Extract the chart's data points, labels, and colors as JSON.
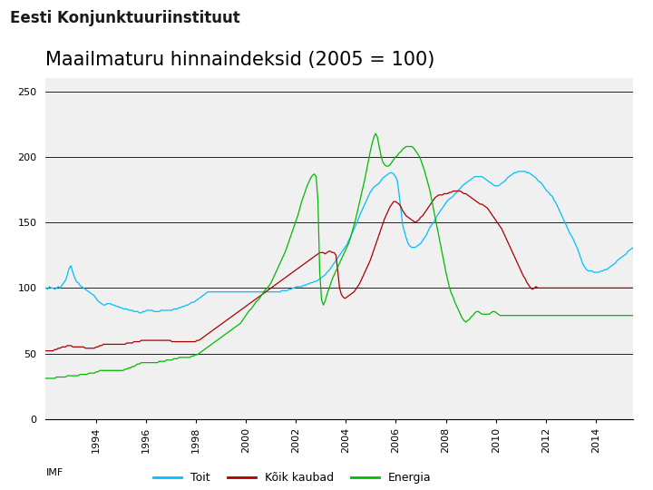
{
  "title": "Maailmaturu hinnaindeksid (2005 = 100)",
  "header": "Eesti Konjunktuuriinstituut",
  "source": "IMF",
  "legend_labels": [
    "Toit",
    "Kõik kaubad",
    "Energia"
  ],
  "colors": {
    "toit": "#00BFFF",
    "koik_kaubad": "#AA0000",
    "energia": "#00BB00"
  },
  "ylim": [
    0,
    260
  ],
  "yticks": [
    0,
    50,
    100,
    150,
    200,
    250
  ],
  "xlim_start": 1992.0,
  "xlim_end": 2015.5,
  "xtick_years": [
    "1994",
    "1996",
    "1998",
    "2000",
    "2002",
    "2004",
    "2006",
    "2008",
    "2010",
    "2012",
    "2014"
  ],
  "bg_color": "#F0F0F0",
  "header_line1_color": "#1F3864",
  "orange_color": "#E87722",
  "toit": [
    100,
    99,
    101,
    100,
    100,
    99,
    100,
    101,
    100,
    102,
    104,
    106,
    110,
    115,
    117,
    112,
    108,
    105,
    104,
    102,
    101,
    100,
    99,
    98,
    97,
    96,
    95,
    94,
    92,
    90,
    89,
    88,
    87,
    87,
    88,
    88,
    88,
    87,
    87,
    86,
    86,
    85,
    85,
    84,
    84,
    84,
    83,
    83,
    83,
    82,
    82,
    82,
    81,
    81,
    82,
    82,
    83,
    83,
    83,
    83,
    82,
    82,
    82,
    82,
    83,
    83,
    83,
    83,
    83,
    83,
    83,
    84,
    84,
    84,
    85,
    85,
    86,
    86,
    87,
    87,
    88,
    89,
    89,
    90,
    91,
    92,
    93,
    94,
    95,
    96,
    97,
    97,
    97,
    97,
    97,
    97,
    97,
    97,
    97,
    97,
    97,
    97,
    97,
    97,
    97,
    97,
    97,
    97,
    97,
    97,
    97,
    97,
    97,
    97,
    97,
    97,
    97,
    97,
    97,
    97,
    97,
    97,
    97,
    97,
    97,
    97,
    97,
    97,
    97,
    97,
    97,
    98,
    98,
    98,
    98,
    99,
    99,
    100,
    100,
    101,
    101,
    101,
    101,
    102,
    102,
    103,
    103,
    104,
    104,
    105,
    105,
    106,
    107,
    108,
    109,
    110,
    112,
    113,
    115,
    117,
    119,
    121,
    123,
    125,
    127,
    129,
    131,
    133,
    136,
    139,
    142,
    145,
    148,
    151,
    155,
    158,
    161,
    164,
    167,
    170,
    173,
    175,
    177,
    178,
    179,
    180,
    182,
    184,
    185,
    186,
    187,
    188,
    188,
    187,
    185,
    182,
    172,
    160,
    148,
    143,
    138,
    134,
    132,
    131,
    131,
    131,
    132,
    133,
    134,
    136,
    138,
    140,
    143,
    146,
    148,
    150,
    152,
    155,
    157,
    159,
    161,
    163,
    165,
    167,
    168,
    169,
    170,
    172,
    173,
    175,
    176,
    178,
    179,
    180,
    181,
    182,
    183,
    184,
    185,
    185,
    185,
    185,
    185,
    184,
    183,
    182,
    181,
    180,
    179,
    178,
    178,
    178,
    179,
    180,
    181,
    182,
    184,
    185,
    186,
    187,
    188,
    188,
    189,
    189,
    189,
    189,
    189,
    188,
    188,
    187,
    186,
    185,
    184,
    182,
    181,
    180,
    178,
    176,
    174,
    173,
    171,
    170,
    167,
    165,
    162,
    159,
    156,
    153,
    150,
    147,
    144,
    141,
    139,
    136,
    133,
    130,
    126,
    122,
    118,
    116,
    114,
    113,
    113,
    113,
    112,
    112,
    112,
    112,
    113,
    113,
    114,
    114,
    115,
    116,
    117,
    118,
    119,
    121,
    122,
    123,
    124,
    125,
    126,
    128,
    129,
    130,
    131
  ],
  "koik_kaubad": [
    52,
    52,
    52,
    52,
    52,
    53,
    53,
    54,
    54,
    55,
    55,
    55,
    56,
    56,
    56,
    55,
    55,
    55,
    55,
    55,
    55,
    55,
    54,
    54,
    54,
    54,
    54,
    54,
    55,
    55,
    56,
    56,
    57,
    57,
    57,
    57,
    57,
    57,
    57,
    57,
    57,
    57,
    57,
    57,
    57,
    58,
    58,
    58,
    58,
    59,
    59,
    59,
    59,
    60,
    60,
    60,
    60,
    60,
    60,
    60,
    60,
    60,
    60,
    60,
    60,
    60,
    60,
    60,
    60,
    60,
    59,
    59,
    59,
    59,
    59,
    59,
    59,
    59,
    59,
    59,
    59,
    59,
    59,
    59,
    60,
    60,
    61,
    62,
    63,
    64,
    65,
    66,
    67,
    68,
    69,
    70,
    71,
    72,
    73,
    74,
    75,
    76,
    77,
    78,
    79,
    80,
    81,
    82,
    83,
    84,
    85,
    86,
    87,
    88,
    89,
    90,
    91,
    92,
    93,
    94,
    95,
    96,
    97,
    98,
    99,
    100,
    101,
    102,
    103,
    104,
    105,
    106,
    107,
    108,
    109,
    110,
    111,
    112,
    113,
    114,
    115,
    116,
    117,
    118,
    119,
    120,
    121,
    122,
    123,
    124,
    125,
    126,
    127,
    127,
    127,
    126,
    127,
    128,
    128,
    127,
    127,
    125,
    113,
    100,
    95,
    93,
    92,
    93,
    94,
    95,
    96,
    97,
    99,
    101,
    103,
    106,
    109,
    112,
    115,
    118,
    121,
    125,
    129,
    133,
    137,
    141,
    145,
    149,
    153,
    156,
    159,
    162,
    164,
    166,
    166,
    165,
    164,
    162,
    159,
    157,
    155,
    154,
    153,
    152,
    151,
    150,
    151,
    152,
    154,
    155,
    157,
    159,
    161,
    163,
    165,
    167,
    169,
    170,
    171,
    171,
    171,
    172,
    172,
    172,
    173,
    173,
    174,
    174,
    174,
    174,
    174,
    173,
    172,
    172,
    171,
    170,
    169,
    168,
    167,
    166,
    165,
    164,
    164,
    163,
    162,
    161,
    159,
    157,
    155,
    153,
    151,
    149,
    147,
    145,
    142,
    139,
    136,
    133,
    130,
    127,
    124,
    121,
    118,
    115,
    112,
    109,
    107,
    104,
    102,
    100,
    99,
    100,
    101,
    100,
    100,
    100,
    100,
    100,
    100,
    100,
    100,
    100,
    100,
    100,
    100,
    100,
    100,
    100,
    100,
    100,
    100,
    100,
    100,
    100,
    100,
    100,
    100,
    100,
    100,
    100,
    100,
    100,
    100,
    100,
    100,
    100,
    100,
    100,
    100,
    100,
    100,
    100,
    100,
    100,
    100,
    100,
    100,
    100,
    100,
    100,
    100,
    100,
    100,
    100,
    100,
    100,
    100
  ],
  "energia": [
    31,
    31,
    31,
    31,
    31,
    31,
    32,
    32,
    32,
    32,
    32,
    32,
    33,
    33,
    33,
    33,
    33,
    33,
    33,
    34,
    34,
    34,
    34,
    34,
    35,
    35,
    35,
    35,
    36,
    36,
    37,
    37,
    37,
    37,
    37,
    37,
    37,
    37,
    37,
    37,
    37,
    37,
    37,
    37,
    38,
    38,
    39,
    39,
    40,
    40,
    41,
    42,
    42,
    43,
    43,
    43,
    43,
    43,
    43,
    43,
    43,
    43,
    43,
    44,
    44,
    44,
    44,
    45,
    45,
    45,
    45,
    46,
    46,
    46,
    47,
    47,
    47,
    47,
    47,
    47,
    47,
    48,
    48,
    49,
    49,
    50,
    51,
    52,
    53,
    54,
    55,
    56,
    57,
    58,
    59,
    60,
    61,
    62,
    63,
    64,
    65,
    66,
    67,
    68,
    69,
    70,
    71,
    72,
    73,
    75,
    77,
    79,
    81,
    83,
    84,
    86,
    88,
    90,
    91,
    93,
    95,
    97,
    99,
    100,
    102,
    104,
    107,
    110,
    113,
    116,
    119,
    122,
    125,
    128,
    132,
    136,
    140,
    144,
    148,
    152,
    156,
    161,
    166,
    170,
    174,
    178,
    181,
    184,
    186,
    187,
    185,
    167,
    112,
    91,
    87,
    90,
    95,
    99,
    103,
    107,
    110,
    113,
    116,
    119,
    122,
    125,
    128,
    131,
    134,
    138,
    143,
    148,
    153,
    159,
    165,
    171,
    177,
    183,
    190,
    197,
    204,
    210,
    215,
    218,
    215,
    208,
    201,
    196,
    194,
    193,
    193,
    194,
    196,
    198,
    200,
    201,
    203,
    204,
    206,
    207,
    208,
    208,
    208,
    208,
    207,
    205,
    203,
    201,
    198,
    194,
    190,
    185,
    180,
    175,
    168,
    161,
    154,
    147,
    140,
    133,
    126,
    119,
    112,
    106,
    100,
    96,
    93,
    89,
    86,
    83,
    80,
    77,
    75,
    74,
    75,
    76,
    78,
    79,
    81,
    82,
    82,
    81,
    80,
    80,
    80,
    80,
    80,
    81,
    82,
    82,
    81,
    80,
    79,
    79,
    79,
    79,
    79,
    79,
    79,
    79,
    79,
    79,
    79,
    79,
    79,
    79,
    79,
    79,
    79,
    79,
    79,
    79,
    79,
    79,
    79,
    79,
    79,
    79,
    79,
    79,
    79,
    79,
    79,
    79,
    79,
    79,
    79,
    79,
    79,
    79,
    79,
    79,
    79,
    79,
    79,
    79,
    79,
    79,
    79,
    79,
    79,
    79,
    79,
    79,
    79,
    79,
    79,
    79,
    79,
    79,
    79,
    79,
    79,
    79,
    79,
    79,
    79,
    79,
    79,
    79,
    79,
    79,
    79,
    79,
    79,
    79,
    79
  ]
}
